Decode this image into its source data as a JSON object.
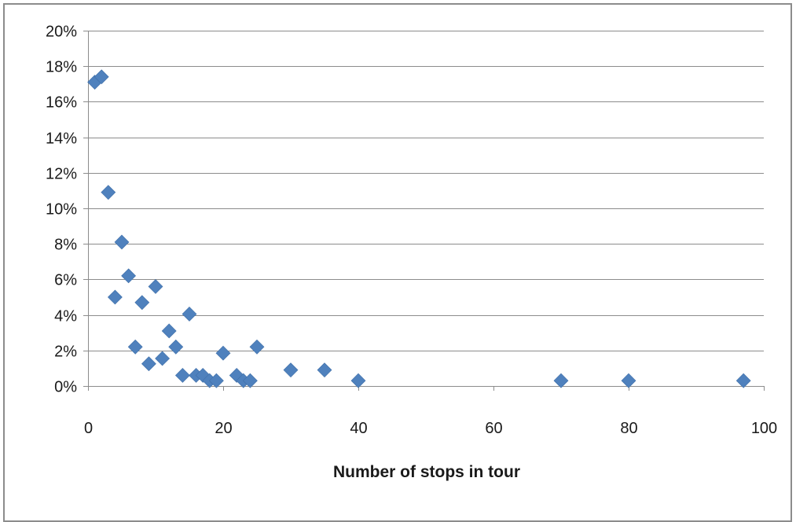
{
  "chart_data": {
    "type": "scatter",
    "title": "",
    "xlabel": "Number of stops in tour",
    "ylabel": "",
    "xlim": [
      0,
      100
    ],
    "ylim": [
      0,
      20
    ],
    "x_ticks": [
      0,
      20,
      40,
      60,
      80,
      100
    ],
    "x_tick_labels": [
      "0",
      "20",
      "40",
      "60",
      "80",
      "100"
    ],
    "y_ticks": [
      0,
      2,
      4,
      6,
      8,
      10,
      12,
      14,
      16,
      18,
      20
    ],
    "y_tick_labels": [
      "0%",
      "2%",
      "4%",
      "6%",
      "8%",
      "10%",
      "12%",
      "14%",
      "16%",
      "18%",
      "20%"
    ],
    "y_unit": "percent",
    "grid": {
      "horizontal": true,
      "vertical": false
    },
    "legend": "none",
    "marker": "diamond",
    "series": [
      {
        "color": "#4f81bd",
        "points": [
          {
            "x": 1,
            "y": 17.1
          },
          {
            "x": 2,
            "y": 17.4
          },
          {
            "x": 3,
            "y": 10.9
          },
          {
            "x": 4,
            "y": 5.0
          },
          {
            "x": 5,
            "y": 8.1
          },
          {
            "x": 6,
            "y": 6.2
          },
          {
            "x": 7,
            "y": 2.2
          },
          {
            "x": 8,
            "y": 4.7
          },
          {
            "x": 9,
            "y": 1.25
          },
          {
            "x": 10,
            "y": 5.6
          },
          {
            "x": 11,
            "y": 1.55
          },
          {
            "x": 12,
            "y": 3.1
          },
          {
            "x": 13,
            "y": 2.2
          },
          {
            "x": 14,
            "y": 0.6
          },
          {
            "x": 15,
            "y": 4.05
          },
          {
            "x": 16,
            "y": 0.6
          },
          {
            "x": 17,
            "y": 0.6
          },
          {
            "x": 18,
            "y": 0.3
          },
          {
            "x": 19,
            "y": 0.3
          },
          {
            "x": 20,
            "y": 1.85
          },
          {
            "x": 22,
            "y": 0.6
          },
          {
            "x": 23,
            "y": 0.3
          },
          {
            "x": 24,
            "y": 0.3
          },
          {
            "x": 25,
            "y": 2.2
          },
          {
            "x": 30,
            "y": 0.9
          },
          {
            "x": 35,
            "y": 0.9
          },
          {
            "x": 40,
            "y": 0.3
          },
          {
            "x": 70,
            "y": 0.3
          },
          {
            "x": 80,
            "y": 0.3
          },
          {
            "x": 97,
            "y": 0.3
          }
        ]
      }
    ]
  }
}
